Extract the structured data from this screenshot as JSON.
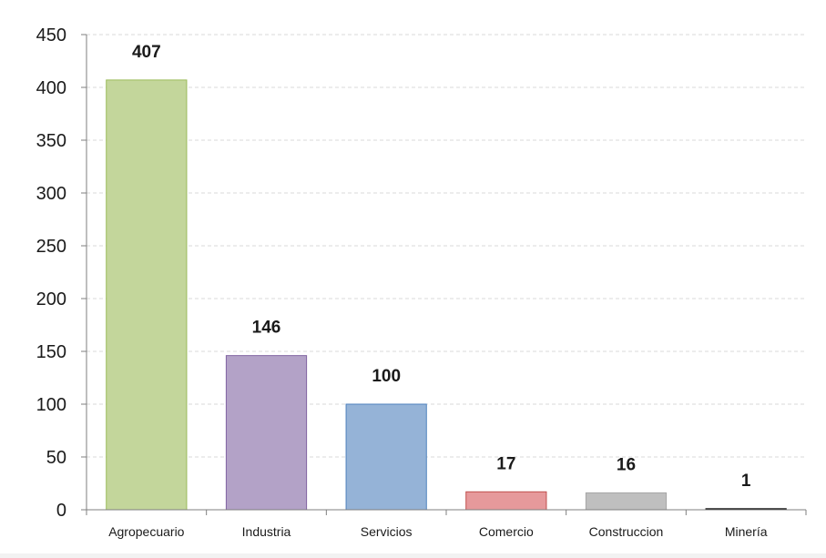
{
  "chart_data": {
    "type": "bar",
    "categories": [
      "Agropecuario",
      "Industria",
      "Servicios",
      "Comercio",
      "Construccion",
      "Minería"
    ],
    "values": [
      407,
      146,
      100,
      17,
      16,
      1
    ],
    "data_labels": [
      "407",
      "146",
      "100",
      "17",
      "16",
      "1"
    ],
    "colors": [
      "#c3d69b",
      "#b3a2c7",
      "#95b3d7",
      "#e6999b",
      "#bfbfbf",
      "#1f1f1f"
    ],
    "border_colors": [
      "#9bbb59",
      "#8064a2",
      "#4f81bd",
      "#c0504d",
      "#a6a6a6",
      "#000000"
    ],
    "title": "",
    "xlabel": "",
    "ylabel": "",
    "ylim": [
      0,
      450
    ],
    "yticks": [
      0,
      50,
      100,
      150,
      200,
      250,
      300,
      350,
      400,
      450
    ],
    "ytick_labels": [
      "0",
      "50",
      "100",
      "150",
      "200",
      "250",
      "300",
      "350",
      "400",
      "450"
    ],
    "grid": true,
    "legend": "none"
  }
}
